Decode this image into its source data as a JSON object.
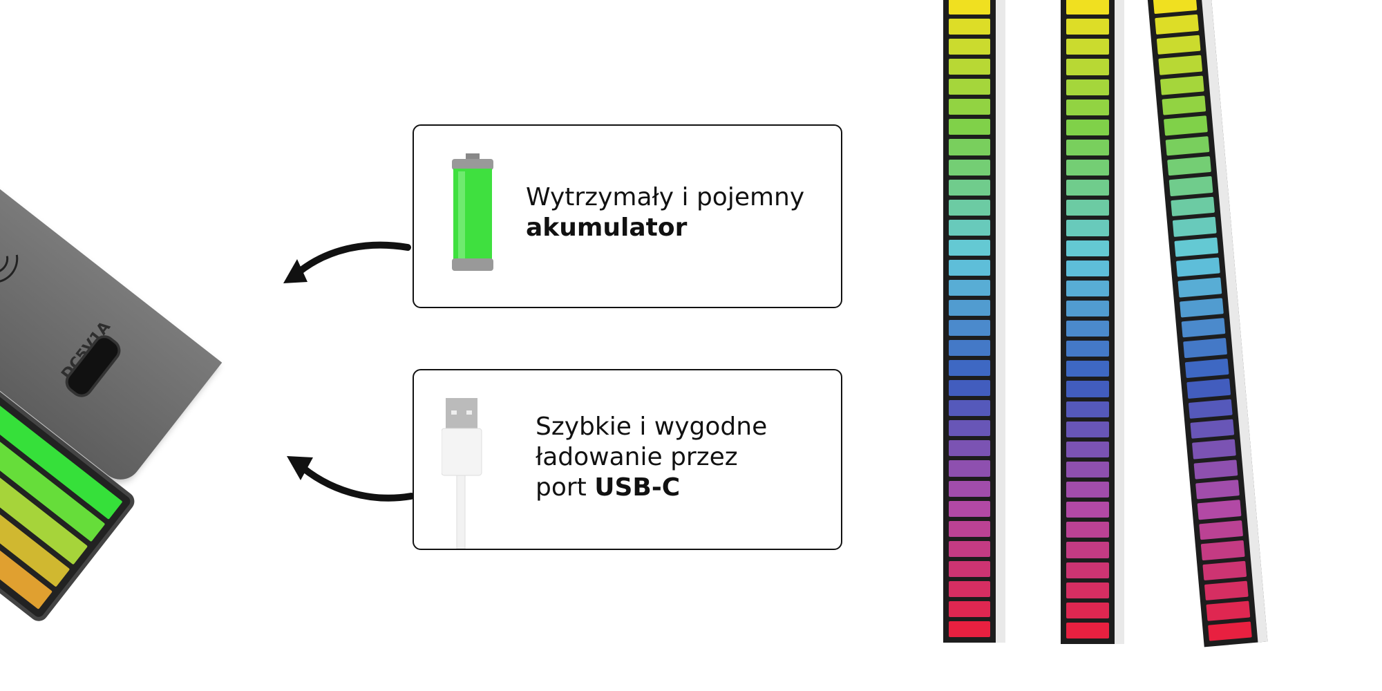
{
  "device": {
    "port_label": "DC5V1A"
  },
  "features": [
    {
      "icon": "battery-icon",
      "line1": "Wytrzymały i pojemny",
      "bold": "akumulator"
    },
    {
      "icon": "usb-cable-icon",
      "line1": "Szybkie i wygodne",
      "line2": "ładowanie przez",
      "line3_prefix": "port ",
      "bold": "USB-C"
    }
  ],
  "colors": {
    "segment_gradient": [
      "#f0e020",
      "#7cd04a",
      "#62c8dc",
      "#3a5ec0",
      "#b04aa8",
      "#e82040"
    ]
  }
}
